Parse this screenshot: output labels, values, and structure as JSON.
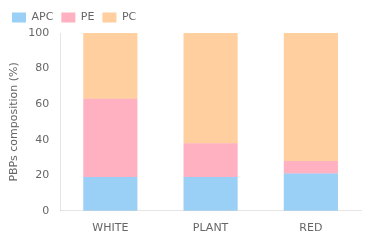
{
  "chart_data": {
    "type": "bar",
    "stacked": true,
    "categories": [
      "WHITE",
      "PLANT",
      "RED"
    ],
    "series": [
      {
        "name": "APC",
        "values": [
          19,
          19,
          21
        ]
      },
      {
        "name": "PE",
        "values": [
          44,
          19,
          7
        ]
      },
      {
        "name": "PC",
        "values": [
          37,
          62,
          72
        ]
      }
    ],
    "ylabel": "PBPs composition (%)",
    "ylim": [
      0,
      100
    ],
    "yticks": [
      0,
      20,
      40,
      60,
      80,
      100
    ],
    "grid": false,
    "legend": "upper left"
  }
}
